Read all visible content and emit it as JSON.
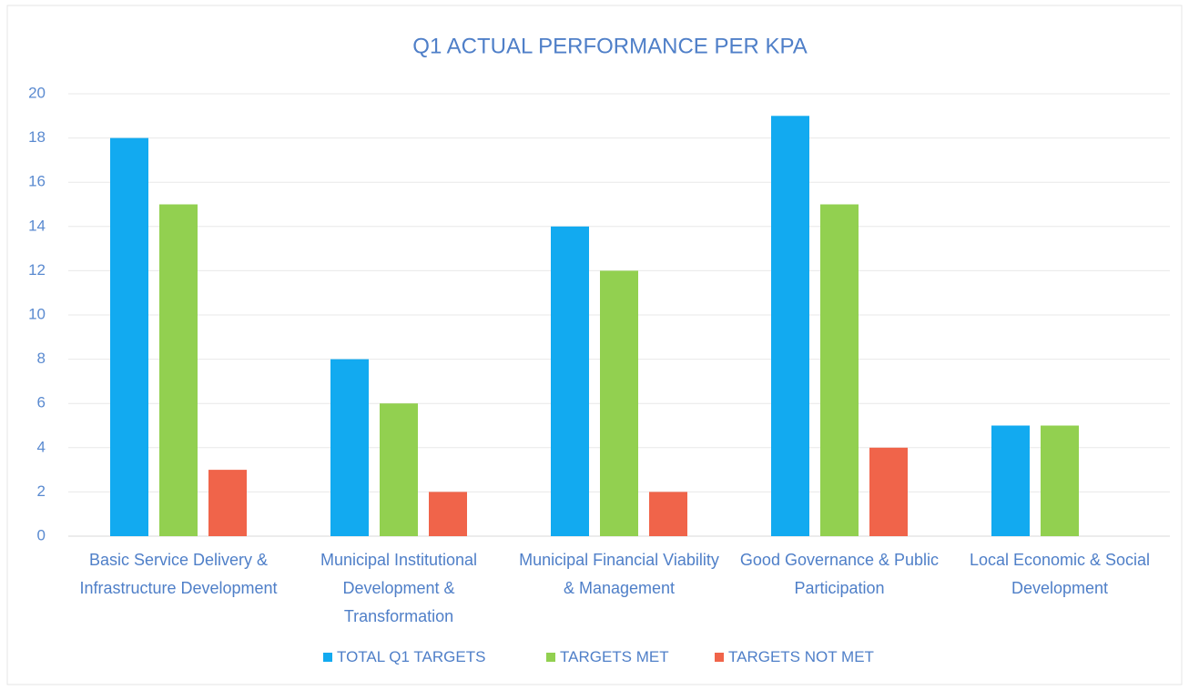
{
  "chart_data": {
    "type": "bar",
    "title": "Q1 ACTUAL PERFORMANCE PER KPA",
    "categories": [
      "Basic Service Delivery & Infrastructure Development",
      "Municipal Institutional Development & Transformation",
      "Municipal Financial Viability & Management",
      "Good Governance & Public Participation",
      "Local Economic & Social Development"
    ],
    "series": [
      {
        "name": "TOTAL Q1 TARGETS",
        "color": "#12aaf0",
        "values": [
          18,
          8,
          14,
          19,
          5
        ]
      },
      {
        "name": "TARGETS MET",
        "color": "#92d050",
        "values": [
          15,
          6,
          12,
          15,
          5
        ]
      },
      {
        "name": "TARGETS NOT MET",
        "color": "#f0644a",
        "values": [
          3,
          2,
          2,
          4,
          0
        ]
      }
    ],
    "ylim": [
      0,
      20
    ],
    "yticks": [
      0,
      2,
      4,
      6,
      8,
      10,
      12,
      14,
      16,
      18,
      20
    ],
    "grid": true,
    "legend": "bottom"
  }
}
